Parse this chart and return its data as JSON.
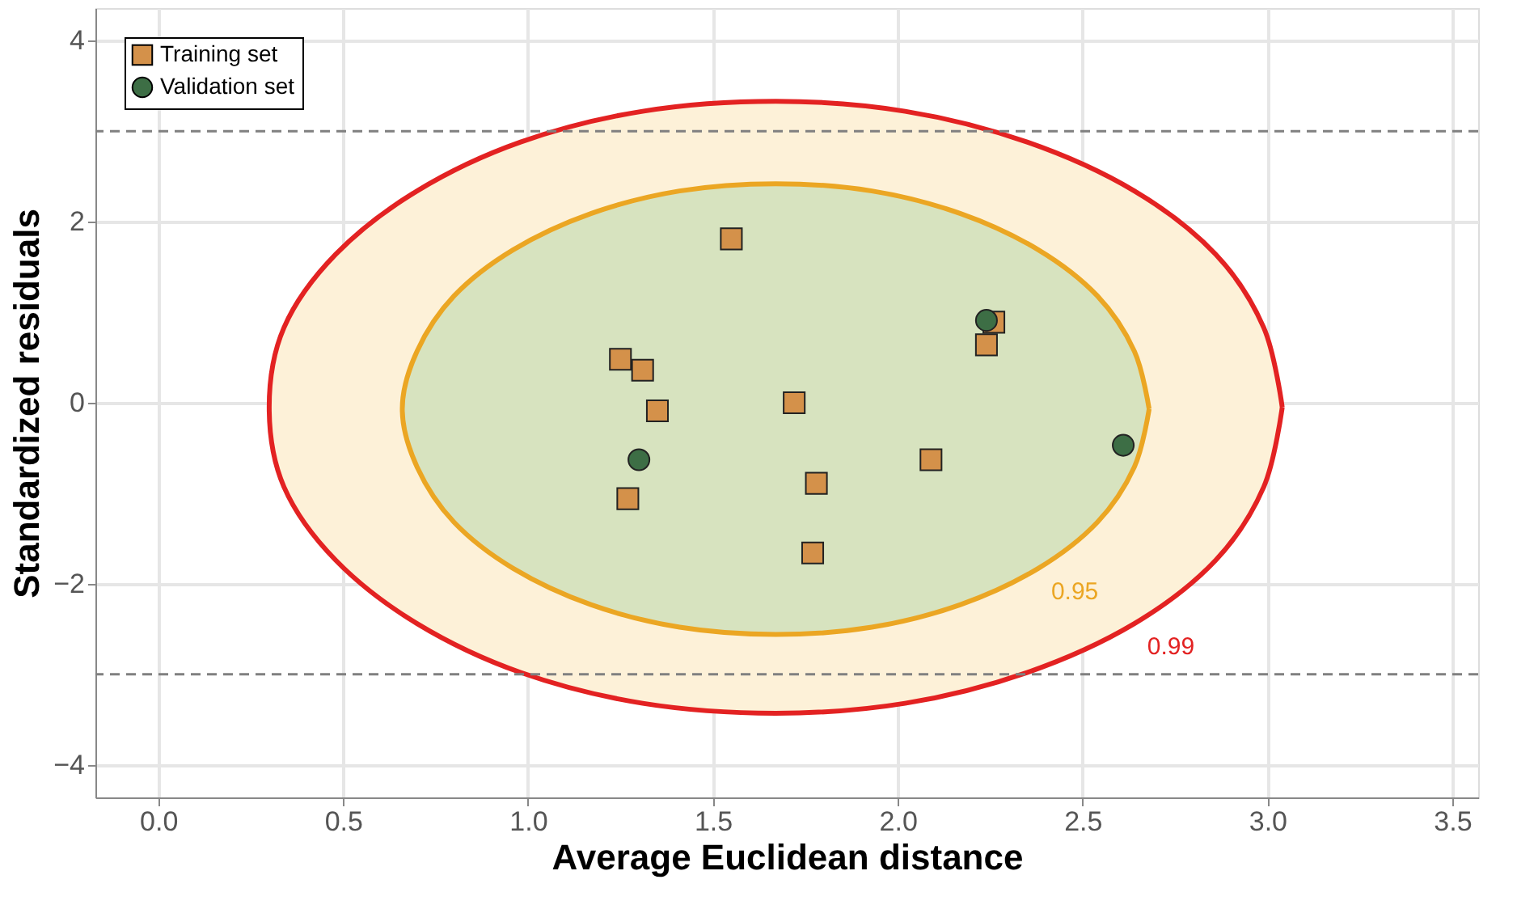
{
  "chart_data": {
    "type": "scatter",
    "xlabel": "Average Euclidean distance",
    "ylabel": "Standardized residuals",
    "xlim": [
      -0.17,
      3.57
    ],
    "ylim": [
      -4.36,
      4.36
    ],
    "xticks": [
      {
        "value": 0,
        "label": "0.0"
      },
      {
        "value": 0.5,
        "label": "0.5"
      },
      {
        "value": 1,
        "label": "1.0"
      },
      {
        "value": 1.5,
        "label": "1.5"
      },
      {
        "value": 2,
        "label": "2.0"
      },
      {
        "value": 2.5,
        "label": "2.5"
      },
      {
        "value": 3,
        "label": "3.0"
      },
      {
        "value": 3.5,
        "label": "3.5"
      }
    ],
    "yticks": [
      -4,
      -2,
      0,
      2,
      4
    ],
    "grid": true,
    "legend": "top left",
    "ref_lines": [
      {
        "axis": "y",
        "value": 3,
        "color": "#808080",
        "line_style": "dashed"
      },
      {
        "axis": "y",
        "value": -3,
        "color": "#808080",
        "line_style": "dashed"
      }
    ],
    "series": [
      {
        "type": "area",
        "name": "0.99",
        "color": "#e32222",
        "x": [
          3.04,
          2.99,
          2.86,
          2.64,
          2.35,
          2.02,
          1.67,
          1.31,
          0.98,
          0.7,
          0.48,
          0.34,
          0.3,
          0.34,
          0.48,
          0.7,
          0.98,
          1.31,
          1.67,
          2.02,
          2.35,
          2.64,
          2.86,
          2.99,
          3.04
        ],
        "values": [
          -0.05,
          0.83,
          1.64,
          2.34,
          2.88,
          3.22,
          3.33,
          3.22,
          2.88,
          2.34,
          1.64,
          0.83,
          -0.05,
          -0.93,
          -1.74,
          -2.44,
          -2.98,
          -3.32,
          -3.43,
          -3.32,
          -2.98,
          -2.44,
          -1.74,
          -0.93,
          -0.05
        ]
      },
      {
        "type": "area",
        "name": "0.95",
        "color": "#eba623",
        "x": [
          2.68,
          2.64,
          2.54,
          2.38,
          2.17,
          1.93,
          1.67,
          1.41,
          1.17,
          0.96,
          0.8,
          0.7,
          0.66,
          0.7,
          0.8,
          0.96,
          1.17,
          1.41,
          1.67,
          1.93,
          2.17,
          2.38,
          2.54,
          2.64,
          2.68
        ],
        "values": [
          -0.07,
          0.57,
          1.18,
          1.69,
          2.09,
          2.34,
          2.42,
          2.34,
          2.09,
          1.69,
          1.18,
          0.57,
          -0.07,
          -0.71,
          -1.32,
          -1.83,
          -2.23,
          -2.48,
          -2.56,
          -2.48,
          -2.23,
          -1.83,
          -1.32,
          -0.71,
          -0.07
        ]
      },
      {
        "name": "Training set",
        "color": "#d4914a",
        "marker": "square",
        "x": [
          1.25,
          1.31,
          1.35,
          1.27,
          1.55,
          1.72,
          1.78,
          1.77,
          2.09,
          2.26,
          2.24
        ],
        "values": [
          0.48,
          0.36,
          -0.09,
          -1.06,
          1.81,
          0.0,
          -0.89,
          -1.66,
          -0.63,
          0.89,
          0.64
        ]
      },
      {
        "name": "Validation set",
        "color": "#3d6e45",
        "marker": "circle",
        "x": [
          1.3,
          2.24,
          2.61
        ],
        "values": [
          -0.63,
          0.91,
          -0.47
        ]
      }
    ]
  }
}
